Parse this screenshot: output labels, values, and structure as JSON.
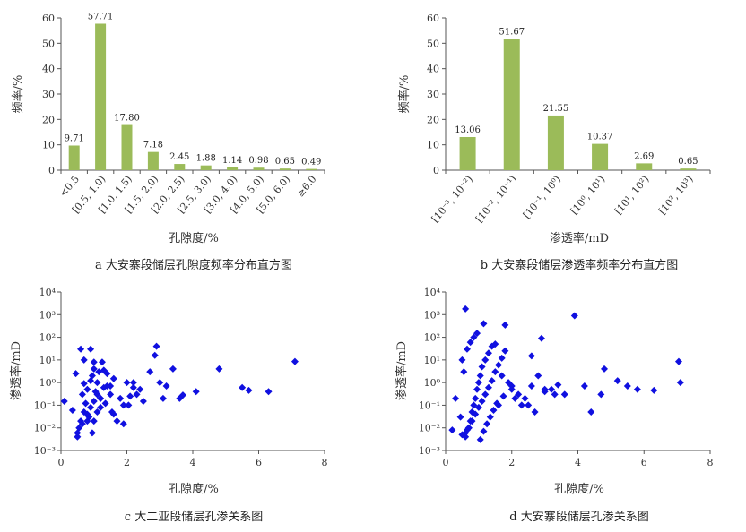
{
  "chart_data": [
    {
      "type": "bar",
      "title": "",
      "caption": "a  大安寨段储层孔隙度频率分布直方图",
      "xlabel": "孔隙度/%",
      "ylabel": "频率/%",
      "ylim": [
        0,
        60
      ],
      "yticks": [
        "0",
        "10",
        "20",
        "30",
        "40",
        "50",
        "60"
      ],
      "categories": [
        "<0.5",
        "[0.5, 1.0)",
        "[1.0, 1.5)",
        "[1.5, 2.0)",
        "[2.0, 2.5)",
        "[2.5, 3.0)",
        "[3.0, 4.0)",
        "[4.0, 5.0)",
        "[5.0, 6.0)",
        "≥6.0"
      ],
      "values": [
        9.71,
        57.71,
        17.8,
        7.18,
        2.45,
        1.88,
        1.14,
        0.98,
        0.65,
        0.49
      ],
      "data_labels": [
        "9.71",
        "57.71",
        "17.80",
        "7.18",
        "2.45",
        "1.88",
        "1.14",
        "0.98",
        "0.65",
        "0.49"
      ],
      "color": "#9bbb59"
    },
    {
      "type": "bar",
      "title": "",
      "caption": "b  大安寨段储层渗透率频率分布直方图",
      "xlabel": "渗透率/mD",
      "ylabel": "频率/%",
      "ylim": [
        0,
        60
      ],
      "yticks": [
        "0",
        "10",
        "20",
        "30",
        "40",
        "50",
        "60"
      ],
      "categories": [
        "[10⁻³, 10⁻²)",
        "[10⁻², 10⁻¹)",
        "[10⁻¹, 10⁰)",
        "[10⁰, 10¹)",
        "[10¹, 10²)",
        "[10², 10³)"
      ],
      "values": [
        13.06,
        51.67,
        21.55,
        10.37,
        2.69,
        0.65
      ],
      "data_labels": [
        "13.06",
        "51.67",
        "21.55",
        "10.37",
        "2.69",
        "0.65"
      ],
      "color": "#9bbb59"
    },
    {
      "type": "scatter",
      "title": "",
      "caption": "c  大二亚段储层孔渗关系图",
      "xlabel": "孔隙度/%",
      "ylabel": "渗透率/mD",
      "xlim": [
        0,
        8
      ],
      "xticks": [
        "0",
        "2",
        "4",
        "6",
        "8"
      ],
      "ylim_log10": [
        -3,
        4
      ],
      "y_scale": "log",
      "yticks": [
        "10⁻³",
        "10⁻²",
        "10⁻¹",
        "10⁰",
        "10¹",
        "10²",
        "10³",
        "10⁴"
      ],
      "marker": "diamond",
      "color": "#1010e0",
      "x": [
        0.1,
        0.35,
        0.5,
        0.55,
        0.6,
        0.65,
        0.7,
        0.75,
        0.8,
        0.8,
        0.85,
        0.9,
        0.9,
        0.95,
        1.0,
        1.0,
        1.05,
        1.1,
        1.1,
        1.15,
        1.2,
        1.2,
        1.25,
        1.3,
        1.35,
        1.4,
        1.5,
        1.55,
        1.6,
        1.7,
        1.8,
        1.9,
        2.0,
        2.1,
        2.2,
        2.3,
        2.5,
        2.7,
        2.85,
        2.9,
        3.0,
        3.2,
        3.4,
        3.6,
        3.7,
        4.1,
        4.8,
        5.5,
        5.7,
        6.3,
        7.1,
        0.6,
        0.7,
        0.9,
        1.0,
        1.2,
        0.5,
        0.8,
        1.1,
        1.3,
        1.6,
        1.9,
        2.2,
        2.4,
        0.45,
        0.7,
        1.0,
        1.5,
        2.05,
        3.1,
        0.65,
        0.95,
        1.4
      ],
      "y": [
        0.15,
        0.06,
        0.004,
        0.01,
        0.02,
        0.3,
        0.05,
        0.12,
        0.02,
        0.5,
        0.03,
        1.2,
        0.08,
        2.0,
        0.15,
        0.02,
        0.4,
        1.0,
        0.05,
        3.0,
        0.2,
        0.08,
        8.0,
        0.6,
        0.12,
        2.5,
        0.3,
        0.05,
        1.5,
        0.02,
        0.2,
        0.015,
        1.0,
        0.25,
        0.6,
        0.3,
        0.15,
        3.0,
        16,
        40,
        1.0,
        0.7,
        4.0,
        0.2,
        0.28,
        0.4,
        4.0,
        0.6,
        0.45,
        0.4,
        8.5,
        30,
        10,
        30,
        4,
        0.2,
        0.006,
        0.04,
        0.3,
        3.5,
        0.04,
        0.1,
        1.0,
        0.5,
        2.5,
        0.9,
        8,
        0.7,
        0.1,
        0.2,
        0.015,
        0.006,
        0.7
      ]
    },
    {
      "type": "scatter",
      "title": "",
      "caption": "d  大安寨段储层孔渗关系图",
      "xlabel": "孔隙度/%",
      "ylabel": "渗透率/mD",
      "xlim": [
        0,
        8
      ],
      "xticks": [
        "0",
        "2",
        "4",
        "6",
        "8"
      ],
      "ylim_log10": [
        -3,
        4
      ],
      "y_scale": "log",
      "yticks": [
        "10⁻³",
        "10⁻²",
        "10⁻¹",
        "10⁰",
        "10¹",
        "10²",
        "10³",
        "10⁴"
      ],
      "marker": "diamond",
      "color": "#1010e0",
      "x": [
        0.6,
        1.15,
        1.8,
        2.9,
        3.9,
        4.2,
        4.4,
        4.7,
        4.8,
        5.2,
        5.5,
        5.8,
        6.3,
        7.05,
        7.1,
        3.6,
        3.4,
        3.2,
        2.6,
        2.8,
        0.2,
        0.3,
        0.45,
        0.5,
        0.55,
        0.6,
        0.65,
        0.7,
        0.75,
        0.8,
        0.85,
        0.9,
        0.95,
        1.0,
        1.05,
        1.1,
        1.2,
        1.3,
        1.4,
        1.5,
        1.6,
        1.7,
        1.9,
        2.0,
        2.2,
        2.4,
        2.5,
        2.7,
        3.0,
        3.3,
        0.6,
        0.7,
        0.8,
        0.9,
        1.0,
        1.1,
        1.2,
        1.3,
        1.4,
        1.5,
        1.6,
        1.7,
        1.8,
        2.0,
        2.1,
        2.3,
        0.5,
        0.65,
        0.75,
        0.85,
        0.95,
        1.05,
        1.15,
        1.25,
        1.35,
        1.45,
        1.55,
        1.75,
        2.6,
        3.0
      ],
      "y": [
        1800,
        400,
        350,
        90,
        900,
        0.7,
        0.05,
        0.3,
        4,
        1.2,
        0.7,
        0.5,
        0.45,
        8.5,
        1.0,
        0.3,
        0.8,
        0.5,
        0.7,
        2.0,
        0.008,
        0.2,
        0.03,
        0.005,
        3,
        0.004,
        0.008,
        0.01,
        0.02,
        0.05,
        0.1,
        0.2,
        0.5,
        1,
        2,
        5,
        10,
        20,
        40,
        50,
        0.1,
        2,
        1,
        0.5,
        0.3,
        0.2,
        0.1,
        0.05,
        0.4,
        0.3,
        0.006,
        0.01,
        0.02,
        0.04,
        0.08,
        0.15,
        0.3,
        0.6,
        1.2,
        3,
        6,
        12,
        25,
        0.7,
        0.2,
        0.1,
        10,
        30,
        60,
        100,
        150,
        0.003,
        0.007,
        0.015,
        0.03,
        0.06,
        0.12,
        0.25,
        15,
        0.5
      ]
    }
  ]
}
